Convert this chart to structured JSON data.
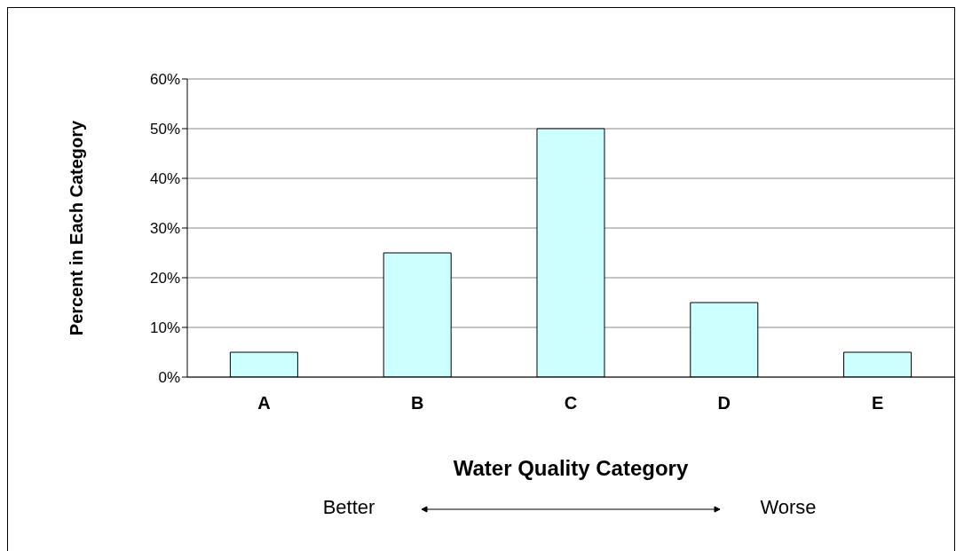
{
  "chart_data": {
    "type": "bar",
    "xlabel": "Water Quality Category",
    "ylabel": "Percent in Each Category",
    "categories": [
      "A",
      "B",
      "C",
      "D",
      "E"
    ],
    "values": [
      5,
      25,
      50,
      15,
      5
    ],
    "color": "#ccffff",
    "ylim": [
      0,
      60
    ],
    "yticks": [
      {
        "value": 0,
        "label": "0%"
      },
      {
        "value": 10,
        "label": "10%"
      },
      {
        "value": 20,
        "label": "20%"
      },
      {
        "value": 30,
        "label": "30%"
      },
      {
        "value": 40,
        "label": "40%"
      },
      {
        "value": 50,
        "label": "50%"
      },
      {
        "value": 60,
        "label": "60%"
      }
    ],
    "grid": "y",
    "annotations": [
      "Better",
      "Worse"
    ]
  }
}
